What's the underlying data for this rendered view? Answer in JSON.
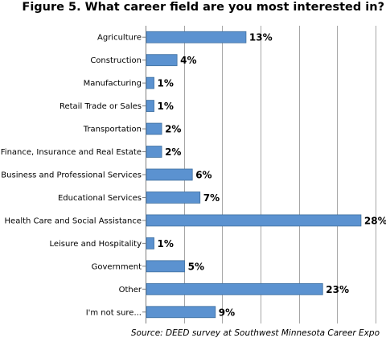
{
  "chart_data": {
    "type": "bar",
    "orientation": "horizontal",
    "title": "Figure 5. What career field are you most interested in?",
    "source": "Source: DEED survey at Southwest Minnesota Career Expo",
    "categories": [
      "Agriculture",
      "Construction",
      "Manufacturing",
      "Retail Trade or Sales",
      "Transportation",
      "Finance, Insurance and Real Estate",
      "Business and Professional Services",
      "Educational Services",
      "Health Care and Social Assistance",
      "Leisure and Hospitality",
      "Government",
      "Other",
      "I'm not sure..."
    ],
    "values": [
      13,
      4,
      1,
      1,
      2,
      2,
      6,
      7,
      28,
      1,
      5,
      23,
      9
    ],
    "value_labels": [
      "13%",
      "4%",
      "1%",
      "1%",
      "2%",
      "2%",
      "6%",
      "7%",
      "28%",
      "1%",
      "5%",
      "23%",
      "9%"
    ],
    "xlim": [
      0,
      30
    ],
    "grid": true,
    "bar_color": "#5b92d0",
    "bar_edge_color": "#3f6f9e"
  }
}
